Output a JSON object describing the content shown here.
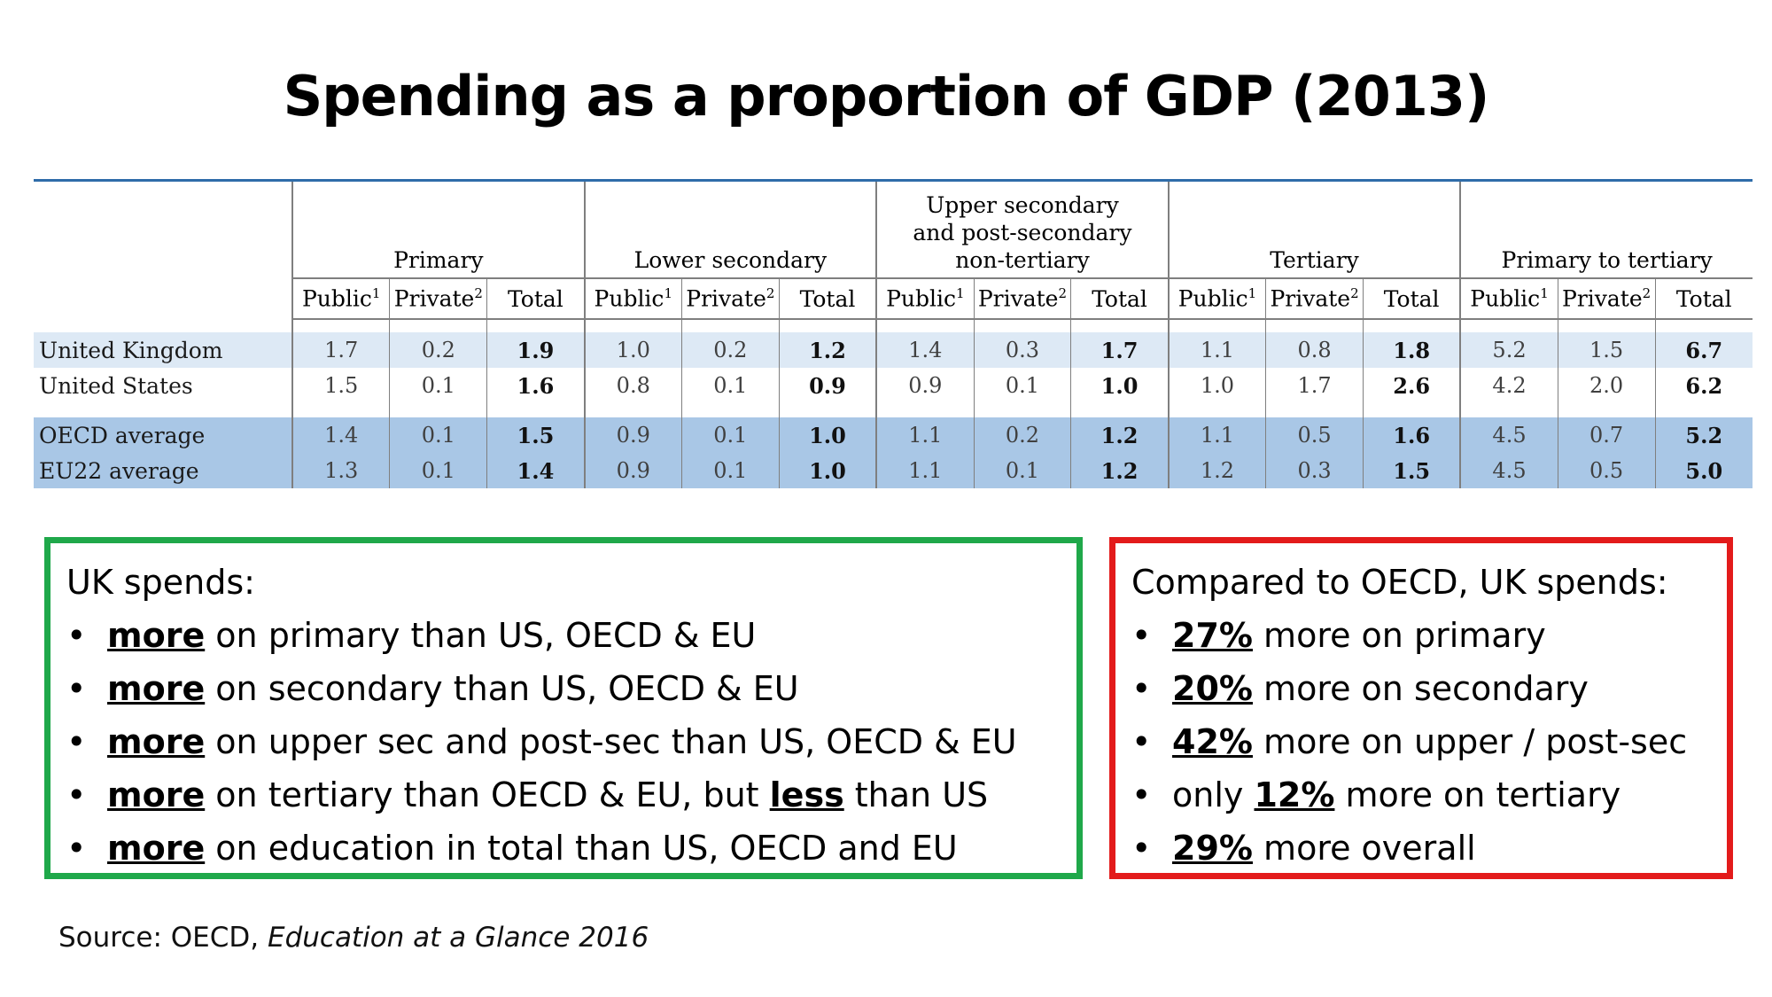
{
  "title": "Spending as a proportion of GDP (2013)",
  "table": {
    "groups": [
      "Primary",
      "Lower secondary",
      "Upper secondary and post-secondary non-tertiary",
      "Tertiary",
      "Primary to tertiary"
    ],
    "group_lines": {
      "upper_1": "Upper secondary",
      "upper_2": "and post-secondary",
      "upper_3": "non-tertiary"
    },
    "subheaders": {
      "public": "Public",
      "private": "Private",
      "total": "Total",
      "public_sup": "1",
      "private_sup": "2"
    },
    "rows": [
      {
        "country": "United Kingdom",
        "values": [
          "1.7",
          "0.2",
          "1.9",
          "1.0",
          "0.2",
          "1.2",
          "1.4",
          "0.3",
          "1.7",
          "1.1",
          "0.8",
          "1.8",
          "5.2",
          "1.5",
          "6.7"
        ]
      },
      {
        "country": "United States",
        "values": [
          "1.5",
          "0.1",
          "1.6",
          "0.8",
          "0.1",
          "0.9",
          "0.9",
          "0.1",
          "1.0",
          "1.0",
          "1.7",
          "2.6",
          "4.2",
          "2.0",
          "6.2"
        ]
      },
      {
        "country": "OECD average",
        "values": [
          "1.4",
          "0.1",
          "1.5",
          "0.9",
          "0.1",
          "1.0",
          "1.1",
          "0.2",
          "1.2",
          "1.1",
          "0.5",
          "1.6",
          "4.5",
          "0.7",
          "5.2"
        ]
      },
      {
        "country": "EU22 average",
        "values": [
          "1.3",
          "0.1",
          "1.4",
          "0.9",
          "0.1",
          "1.0",
          "1.1",
          "0.1",
          "1.2",
          "1.2",
          "0.3",
          "1.5",
          "4.5",
          "0.5",
          "5.0"
        ]
      }
    ]
  },
  "green_box": {
    "heading": "UK spends:",
    "items": [
      {
        "em": "more",
        "rest": " on primary than US, OECD & EU"
      },
      {
        "em": "more",
        "rest": " on secondary than US, OECD & EU"
      },
      {
        "em": "more",
        "rest": " on upper sec and post-sec than US, OECD & EU"
      },
      {
        "em": "more",
        "rest": " on tertiary than OECD & EU, but ",
        "em2": "less",
        "rest2": " than US"
      },
      {
        "em": "more",
        "rest": " on education in total than US, OECD and EU"
      }
    ]
  },
  "red_box": {
    "heading": "Compared to OECD, UK spends:",
    "items": [
      {
        "pre": "",
        "em": "27%",
        "rest": " more on primary"
      },
      {
        "pre": "",
        "em": "20%",
        "rest": " more on secondary"
      },
      {
        "pre": "",
        "em": "42%",
        "rest": " more on upper / post-sec"
      },
      {
        "pre": "only ",
        "em": "12%",
        "rest": " more on tertiary"
      },
      {
        "pre": "",
        "em": "29%",
        "rest": " more overall"
      }
    ]
  },
  "source": {
    "prefix": "Source: OECD, ",
    "title": "Education at a Glance 2016"
  },
  "bullet": "•"
}
